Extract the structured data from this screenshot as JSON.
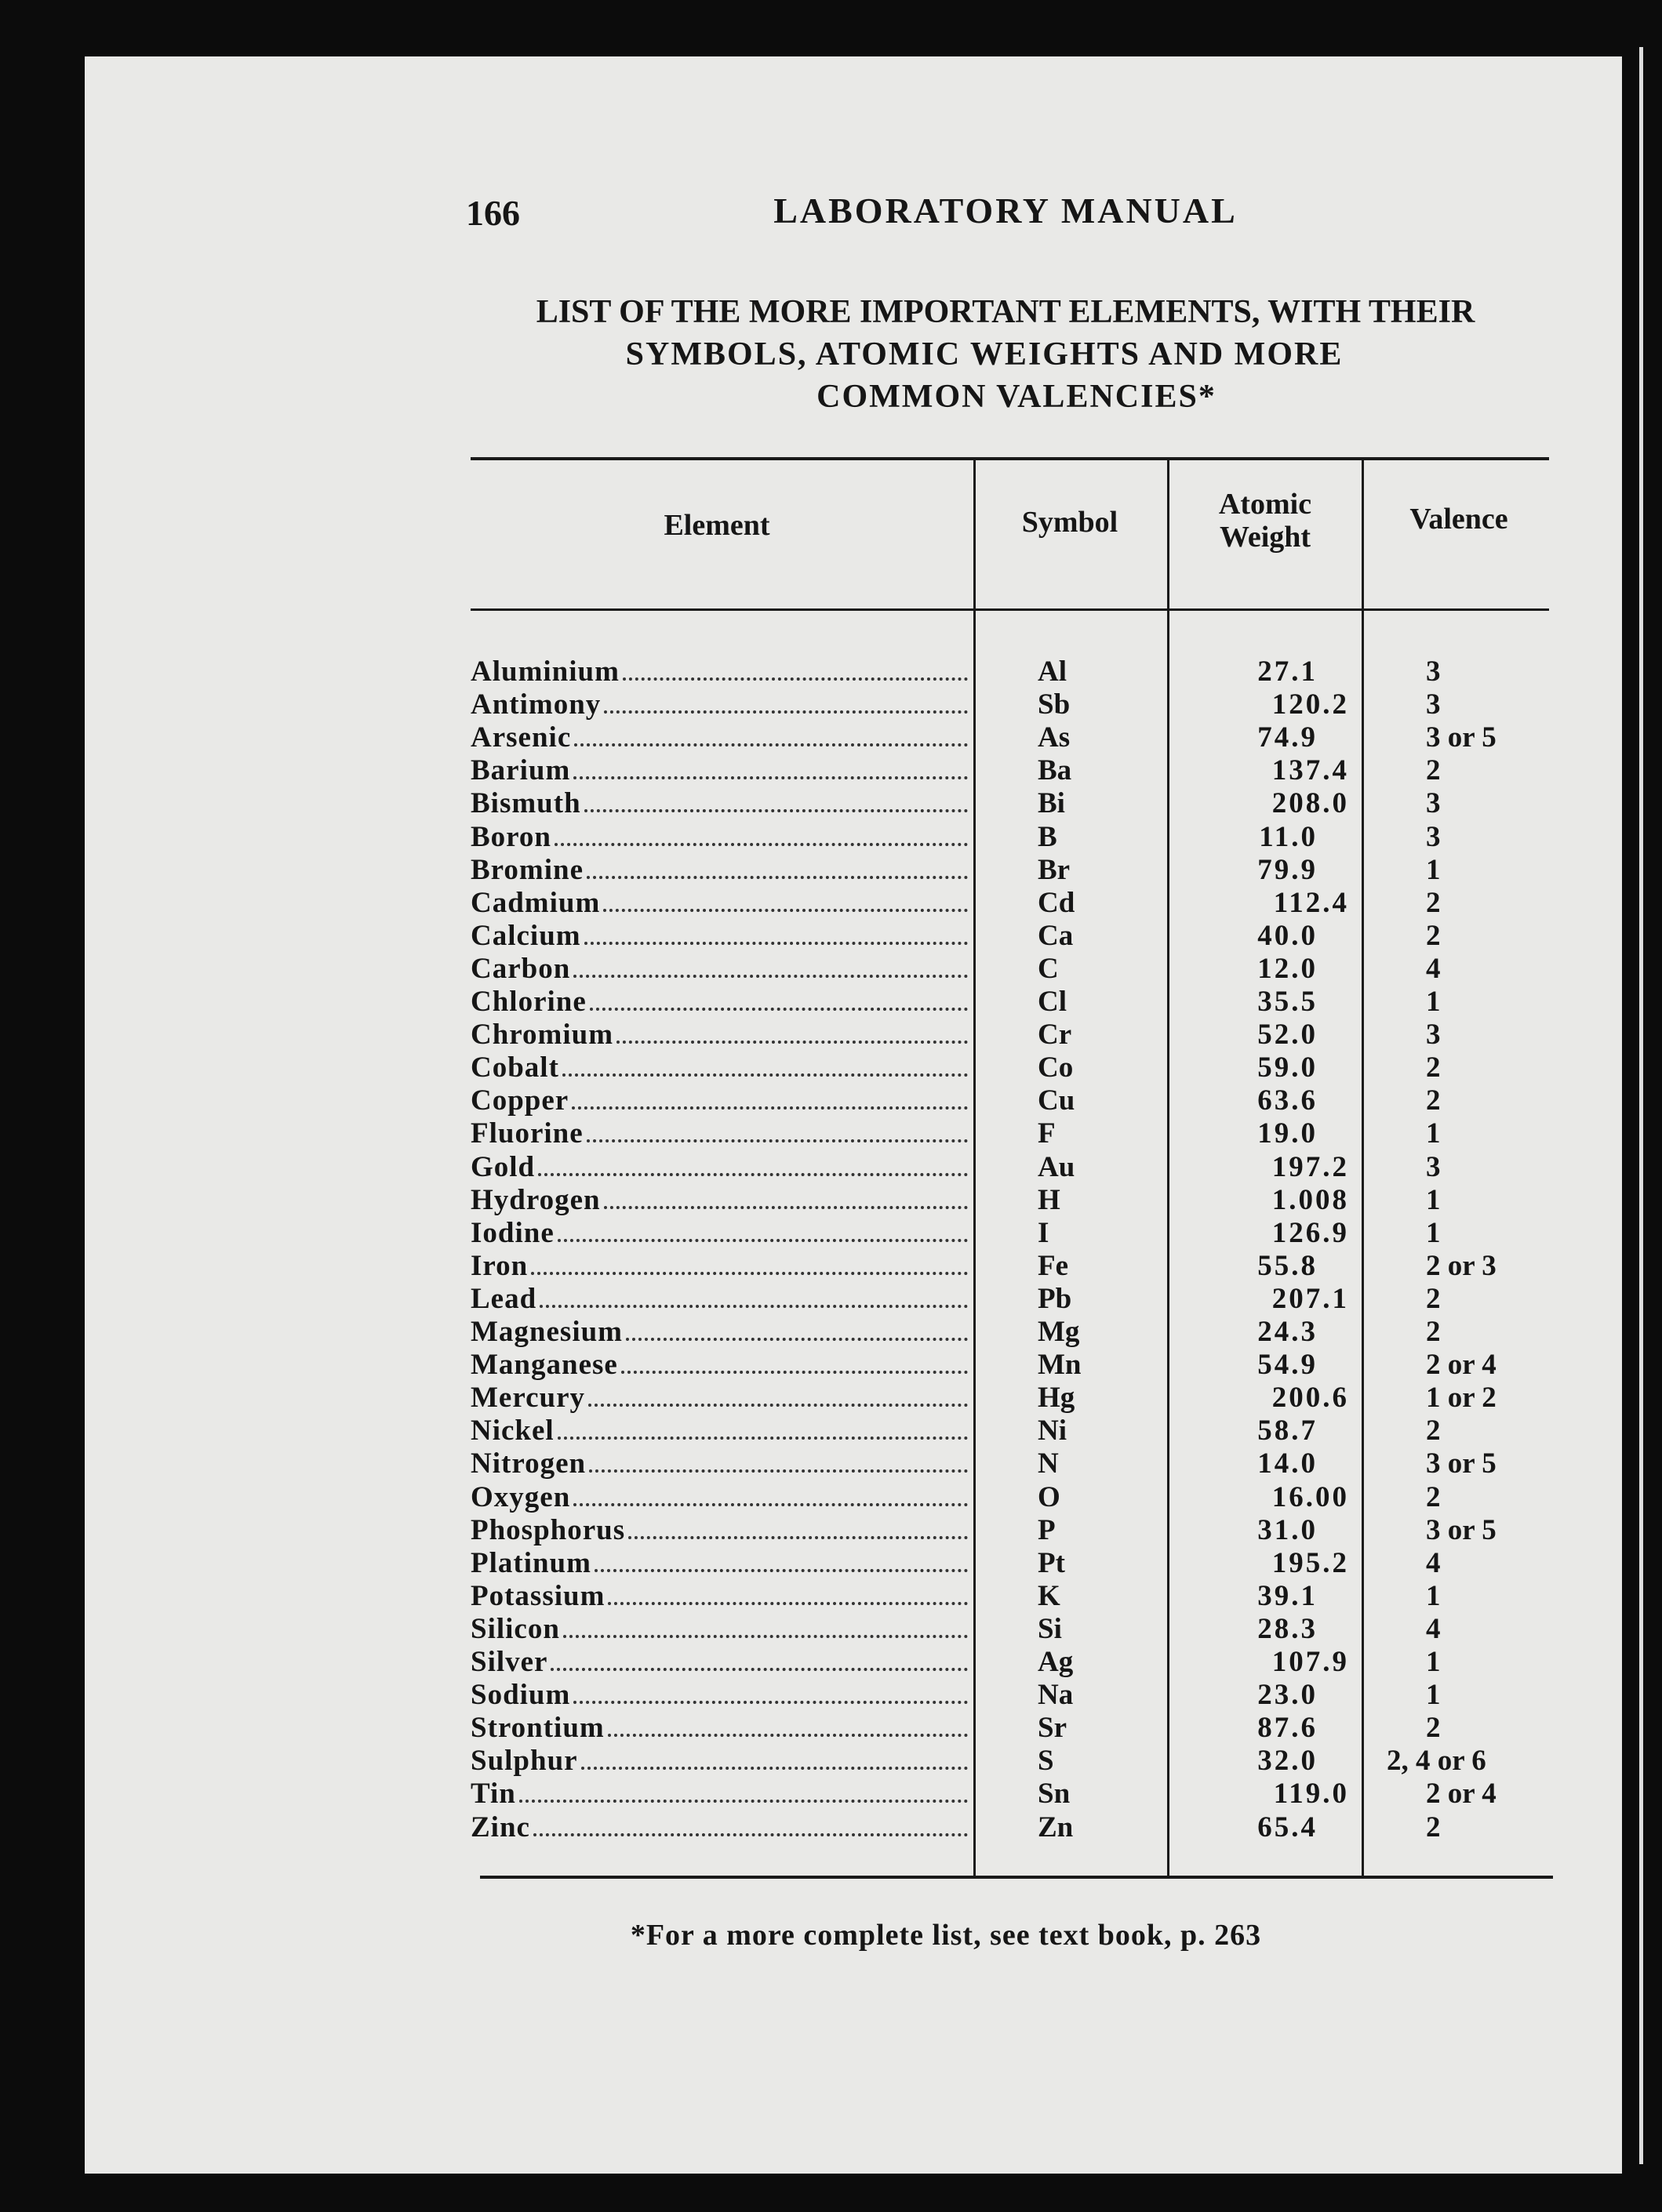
{
  "header": {
    "page_number": "166",
    "title": "LABORATORY MANUAL"
  },
  "heading": [
    "LIST OF THE MORE IMPORTANT ELEMENTS, WITH THEIR",
    "SYMBOLS, ATOMIC WEIGHTS AND MORE",
    "COMMON VALENCIES*"
  ],
  "table": {
    "columns": [
      "Element",
      "Symbol",
      "Atomic Weight",
      "Valence"
    ],
    "rows": [
      [
        "Aluminium",
        "Al",
        "27.1",
        "3"
      ],
      [
        "Antimony",
        "Sb",
        "120.2",
        "3"
      ],
      [
        "Arsenic",
        "As",
        "74.9",
        "3 or 5"
      ],
      [
        "Barium",
        "Ba",
        "137.4",
        "2"
      ],
      [
        "Bismuth",
        "Bi",
        "208.0",
        "3"
      ],
      [
        "Boron",
        "B",
        "11.0",
        "3"
      ],
      [
        "Bromine",
        "Br",
        "79.9",
        "1"
      ],
      [
        "Cadmium",
        "Cd",
        "112.4",
        "2"
      ],
      [
        "Calcium",
        "Ca",
        "40.0",
        "2"
      ],
      [
        "Carbon",
        "C",
        "12.0",
        "4"
      ],
      [
        "Chlorine",
        "Cl",
        "35.5",
        "1"
      ],
      [
        "Chromium",
        "Cr",
        "52.0",
        "3"
      ],
      [
        "Cobalt",
        "Co",
        "59.0",
        "2"
      ],
      [
        "Copper",
        "Cu",
        "63.6",
        "2"
      ],
      [
        "Fluorine",
        "F",
        "19.0",
        "1"
      ],
      [
        "Gold",
        "Au",
        "197.2",
        "3"
      ],
      [
        "Hydrogen",
        "H",
        "1.008",
        "1"
      ],
      [
        "Iodine",
        "I",
        "126.9",
        "1"
      ],
      [
        "Iron",
        "Fe",
        "55.8",
        "2 or 3"
      ],
      [
        "Lead",
        "Pb",
        "207.1",
        "2"
      ],
      [
        "Magnesium",
        "Mg",
        "24.3",
        "2"
      ],
      [
        "Manganese",
        "Mn",
        "54.9",
        "2 or 4"
      ],
      [
        "Mercury",
        "Hg",
        "200.6",
        "1 or 2"
      ],
      [
        "Nickel",
        "Ni",
        "58.7",
        "2"
      ],
      [
        "Nitrogen",
        "N",
        "14.0",
        "3 or 5"
      ],
      [
        "Oxygen",
        "O",
        "16.00",
        "2"
      ],
      [
        "Phosphorus",
        "P",
        "31.0",
        "3 or 5"
      ],
      [
        "Platinum",
        "Pt",
        "195.2",
        "4"
      ],
      [
        "Potassium",
        "K",
        "39.1",
        "1"
      ],
      [
        "Silicon",
        "Si",
        "28.3",
        "4"
      ],
      [
        "Silver",
        "Ag",
        "107.9",
        "1"
      ],
      [
        "Sodium",
        "Na",
        "23.0",
        "1"
      ],
      [
        "Strontium",
        "Sr",
        "87.6",
        "2"
      ],
      [
        "Sulphur",
        "S",
        "32.0",
        "2, 4 or 6"
      ],
      [
        "Tin",
        "Sn",
        "119.0",
        "2 or 4"
      ],
      [
        "Zinc",
        "Zn",
        "65.4",
        "2"
      ]
    ]
  },
  "footnote": "*For a more complete list, see text book, p. 263"
}
